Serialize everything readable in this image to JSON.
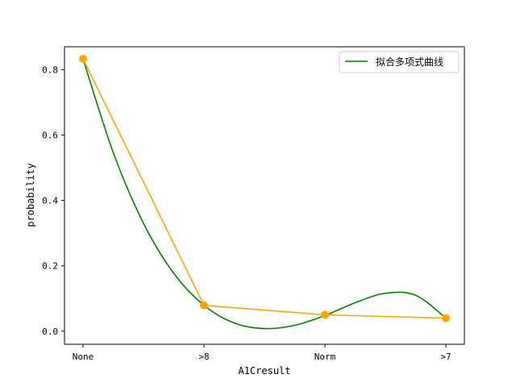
{
  "chart_data": {
    "type": "line",
    "categories": [
      "None",
      ">8",
      "Norm",
      ">7"
    ],
    "xlabel": "A1Cresult",
    "ylabel": "probability",
    "ylim": [
      -0.04,
      0.87
    ],
    "yticks": [
      0.0,
      0.2,
      0.4,
      0.6,
      0.8
    ],
    "ytick_labels": [
      "0.0",
      "0.2",
      "0.4",
      "0.6",
      "0.8"
    ],
    "grid": false,
    "legend_position": "top-right",
    "series": [
      {
        "name": "拟合多项式曲线",
        "kind": "fitted-curve",
        "color": "#008000",
        "x": [
          0.0,
          0.25,
          0.5,
          0.75,
          1.0,
          1.25,
          1.5,
          1.75,
          2.0,
          2.25,
          2.5,
          2.75,
          3.0
        ],
        "values": [
          0.833,
          0.546,
          0.33,
          0.177,
          0.079,
          0.025,
          0.008,
          0.018,
          0.048,
          0.087,
          0.116,
          0.11,
          0.04
        ]
      },
      {
        "name": "",
        "kind": "observed",
        "color": "#FFA500",
        "marker": "circle",
        "values": [
          0.833,
          0.079,
          0.05,
          0.04
        ]
      }
    ]
  }
}
